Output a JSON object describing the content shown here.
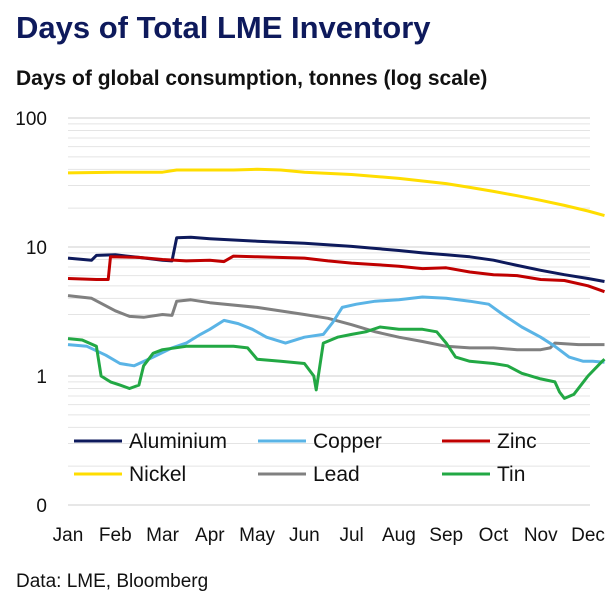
{
  "header": {
    "title": "Days of Total LME Inventory",
    "subtitle": "Days of global consumption, tonnes (log scale)"
  },
  "footer": {
    "source": "Data: LME, Bloomberg"
  },
  "chart_data": {
    "type": "line",
    "title": "Days of Total LME Inventory",
    "subtitle": "Days of global consumption, tonnes (log scale)",
    "xlabel": "",
    "ylabel": "",
    "yscale": "log",
    "ylim": [
      0.1,
      100
    ],
    "y_ticks": [
      {
        "value": 100,
        "label": "100"
      },
      {
        "value": 10,
        "label": "10"
      },
      {
        "value": 1,
        "label": "1"
      },
      {
        "value": 0.1,
        "label": "0"
      }
    ],
    "x_ticks": [
      "Jan",
      "Feb",
      "Mar",
      "Apr",
      "May",
      "Jun",
      "Jul",
      "Aug",
      "Sep",
      "Oct",
      "Nov",
      "Dec"
    ],
    "grid": true,
    "legend_position": "bottom",
    "series": [
      {
        "name": "Aluminium",
        "color": "#0e1a5c",
        "points": [
          [
            0,
            8.2
          ],
          [
            0.5,
            7.9
          ],
          [
            0.6,
            8.6
          ],
          [
            1.0,
            8.7
          ],
          [
            1.5,
            8.3
          ],
          [
            2.0,
            7.9
          ],
          [
            2.2,
            7.8
          ],
          [
            2.3,
            11.8
          ],
          [
            2.6,
            11.9
          ],
          [
            3.0,
            11.6
          ],
          [
            4.0,
            11.1
          ],
          [
            5.0,
            10.7
          ],
          [
            6.0,
            10.1
          ],
          [
            7.0,
            9.4
          ],
          [
            7.5,
            9.0
          ],
          [
            8.0,
            8.7
          ],
          [
            8.5,
            8.4
          ],
          [
            9.0,
            7.9
          ],
          [
            9.5,
            7.2
          ],
          [
            10.0,
            6.6
          ],
          [
            10.5,
            6.1
          ],
          [
            11.0,
            5.7
          ],
          [
            11.35,
            5.4
          ]
        ]
      },
      {
        "name": "Copper",
        "color": "#5ab4e6",
        "points": [
          [
            0,
            1.75
          ],
          [
            0.4,
            1.7
          ],
          [
            0.8,
            1.45
          ],
          [
            1.1,
            1.25
          ],
          [
            1.4,
            1.2
          ],
          [
            1.8,
            1.4
          ],
          [
            2.2,
            1.65
          ],
          [
            2.5,
            1.8
          ],
          [
            2.8,
            2.1
          ],
          [
            3.0,
            2.3
          ],
          [
            3.3,
            2.7
          ],
          [
            3.6,
            2.55
          ],
          [
            3.9,
            2.3
          ],
          [
            4.2,
            2.0
          ],
          [
            4.6,
            1.8
          ],
          [
            5.0,
            2.0
          ],
          [
            5.4,
            2.1
          ],
          [
            5.6,
            2.6
          ],
          [
            5.8,
            3.4
          ],
          [
            6.1,
            3.6
          ],
          [
            6.5,
            3.8
          ],
          [
            7.0,
            3.9
          ],
          [
            7.5,
            4.1
          ],
          [
            8.0,
            4.0
          ],
          [
            8.5,
            3.8
          ],
          [
            8.9,
            3.6
          ],
          [
            9.2,
            3.0
          ],
          [
            9.6,
            2.4
          ],
          [
            10.0,
            2.0
          ],
          [
            10.3,
            1.7
          ],
          [
            10.6,
            1.4
          ],
          [
            10.9,
            1.3
          ],
          [
            11.1,
            1.3
          ],
          [
            11.35,
            1.28
          ]
        ]
      },
      {
        "name": "Zinc",
        "color": "#c00000",
        "points": [
          [
            0,
            5.7
          ],
          [
            0.6,
            5.6
          ],
          [
            0.85,
            5.6
          ],
          [
            0.9,
            8.4
          ],
          [
            1.5,
            8.3
          ],
          [
            2.0,
            8.0
          ],
          [
            2.5,
            7.8
          ],
          [
            3.0,
            7.9
          ],
          [
            3.3,
            7.7
          ],
          [
            3.5,
            8.5
          ],
          [
            4.0,
            8.4
          ],
          [
            5.0,
            8.2
          ],
          [
            5.5,
            7.8
          ],
          [
            6.0,
            7.5
          ],
          [
            6.5,
            7.3
          ],
          [
            7.0,
            7.1
          ],
          [
            7.5,
            6.8
          ],
          [
            8.0,
            6.9
          ],
          [
            8.5,
            6.4
          ],
          [
            9.0,
            6.1
          ],
          [
            9.5,
            6.0
          ],
          [
            10.0,
            5.6
          ],
          [
            10.5,
            5.5
          ],
          [
            11.0,
            5.0
          ],
          [
            11.35,
            4.5
          ]
        ]
      },
      {
        "name": "Nickel",
        "color": "#ffdd00",
        "points": [
          [
            0,
            37.5
          ],
          [
            1.0,
            38.0
          ],
          [
            2.0,
            38.0
          ],
          [
            2.3,
            39.5
          ],
          [
            3.0,
            39.5
          ],
          [
            3.5,
            39.5
          ],
          [
            4.0,
            40.0
          ],
          [
            4.5,
            39.5
          ],
          [
            5.0,
            38.0
          ],
          [
            6.0,
            36.5
          ],
          [
            7.0,
            34.0
          ],
          [
            8.0,
            31.0
          ],
          [
            8.5,
            29.0
          ],
          [
            9.0,
            27.0
          ],
          [
            9.5,
            25.0
          ],
          [
            10.0,
            23.0
          ],
          [
            10.5,
            21.0
          ],
          [
            11.0,
            19.0
          ],
          [
            11.35,
            17.5
          ]
        ]
      },
      {
        "name": "Lead",
        "color": "#808080",
        "points": [
          [
            0,
            4.2
          ],
          [
            0.5,
            4.0
          ],
          [
            1.0,
            3.2
          ],
          [
            1.3,
            2.9
          ],
          [
            1.6,
            2.85
          ],
          [
            2.0,
            3.0
          ],
          [
            2.2,
            2.95
          ],
          [
            2.3,
            3.8
          ],
          [
            2.6,
            3.9
          ],
          [
            3.0,
            3.7
          ],
          [
            4.0,
            3.4
          ],
          [
            5.0,
            3.0
          ],
          [
            5.5,
            2.8
          ],
          [
            6.0,
            2.5
          ],
          [
            6.5,
            2.2
          ],
          [
            7.0,
            2.0
          ],
          [
            7.5,
            1.85
          ],
          [
            8.0,
            1.7
          ],
          [
            8.5,
            1.65
          ],
          [
            9.0,
            1.65
          ],
          [
            9.5,
            1.6
          ],
          [
            10.0,
            1.6
          ],
          [
            10.2,
            1.65
          ],
          [
            10.3,
            1.8
          ],
          [
            10.8,
            1.75
          ],
          [
            11.35,
            1.75
          ]
        ]
      },
      {
        "name": "Tin",
        "color": "#22a844",
        "points": [
          [
            0,
            1.95
          ],
          [
            0.3,
            1.9
          ],
          [
            0.6,
            1.7
          ],
          [
            0.7,
            1.0
          ],
          [
            0.9,
            0.9
          ],
          [
            1.1,
            0.85
          ],
          [
            1.3,
            0.8
          ],
          [
            1.5,
            0.85
          ],
          [
            1.6,
            1.2
          ],
          [
            1.8,
            1.5
          ],
          [
            2.0,
            1.6
          ],
          [
            2.5,
            1.7
          ],
          [
            3.0,
            1.7
          ],
          [
            3.5,
            1.7
          ],
          [
            3.8,
            1.65
          ],
          [
            4.0,
            1.35
          ],
          [
            4.5,
            1.3
          ],
          [
            5.0,
            1.25
          ],
          [
            5.2,
            1.0
          ],
          [
            5.25,
            0.78
          ],
          [
            5.4,
            1.8
          ],
          [
            5.7,
            2.0
          ],
          [
            6.0,
            2.1
          ],
          [
            6.3,
            2.2
          ],
          [
            6.6,
            2.4
          ],
          [
            7.0,
            2.3
          ],
          [
            7.5,
            2.3
          ],
          [
            7.8,
            2.2
          ],
          [
            8.0,
            1.8
          ],
          [
            8.2,
            1.4
          ],
          [
            8.5,
            1.3
          ],
          [
            9.0,
            1.25
          ],
          [
            9.3,
            1.2
          ],
          [
            9.6,
            1.05
          ],
          [
            10.0,
            0.95
          ],
          [
            10.3,
            0.9
          ],
          [
            10.4,
            0.75
          ],
          [
            10.5,
            0.67
          ],
          [
            10.7,
            0.72
          ],
          [
            11.0,
            1.0
          ],
          [
            11.3,
            1.3
          ],
          [
            11.35,
            1.35
          ]
        ]
      }
    ]
  }
}
